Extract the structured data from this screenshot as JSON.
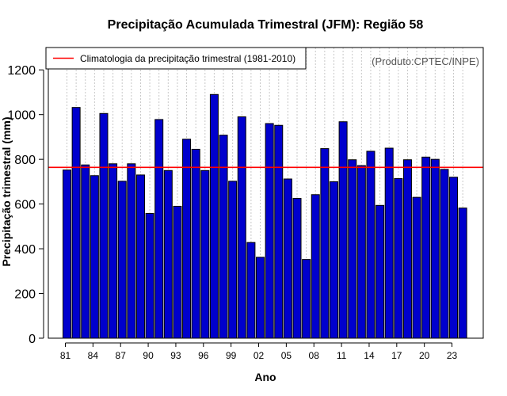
{
  "chart_data": {
    "type": "bar",
    "title": "Precipitação Acumulada Trimestral (JFM): Região 58",
    "xlabel": "Ano",
    "ylabel": "Precipitação trimestral (mm)",
    "ylim": [
      0,
      1300
    ],
    "yticks": [
      0,
      200,
      400,
      600,
      800,
      1000,
      1200
    ],
    "xtick_labels": [
      "81",
      "84",
      "87",
      "90",
      "93",
      "96",
      "99",
      "02",
      "05",
      "08",
      "11",
      "14",
      "17",
      "20",
      "23"
    ],
    "categories": [
      "1981",
      "1982",
      "1983",
      "1984",
      "1985",
      "1986",
      "1987",
      "1988",
      "1989",
      "1990",
      "1991",
      "1992",
      "1993",
      "1994",
      "1995",
      "1996",
      "1997",
      "1998",
      "1999",
      "2000",
      "2001",
      "2002",
      "2003",
      "2004",
      "2005",
      "2006",
      "2007",
      "2008",
      "2009",
      "2010",
      "2011",
      "2012",
      "2013",
      "2014",
      "2015",
      "2016",
      "2017",
      "2018",
      "2019",
      "2020",
      "2021",
      "2022",
      "2023",
      "2024"
    ],
    "values": [
      752,
      1032,
      775,
      727,
      1005,
      780,
      702,
      780,
      730,
      558,
      978,
      750,
      590,
      890,
      845,
      750,
      1090,
      908,
      702,
      990,
      428,
      362,
      960,
      952,
      712,
      625,
      352,
      642,
      848,
      700,
      968,
      798,
      772,
      836,
      594,
      850,
      714,
      798,
      630,
      810,
      800,
      755,
      720,
      582
    ],
    "climatology": {
      "value": 764,
      "label": "Climatologia da precipitação trimestral (1981-2010)",
      "color": "#ff0000"
    },
    "bar_color": "#0000cd",
    "grid": "vertical-dotted",
    "legend_position": "top-left",
    "credit": "(Produto:CPTEC/INPE)"
  }
}
